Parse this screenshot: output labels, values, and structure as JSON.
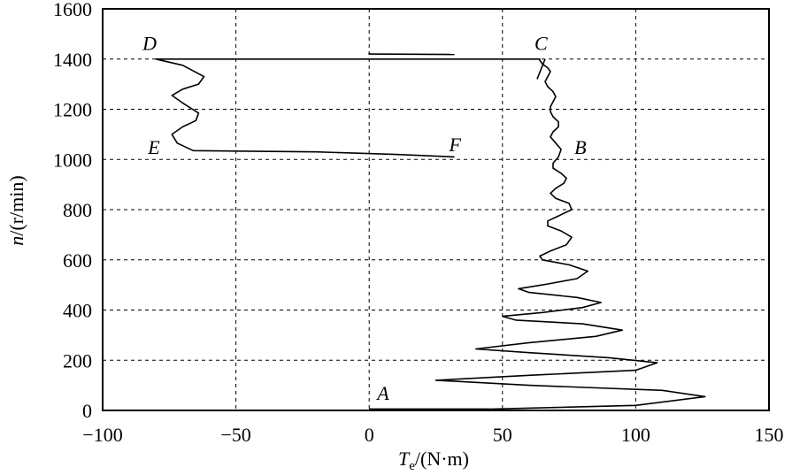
{
  "chart_data": {
    "type": "line",
    "title": "",
    "xlabel": "T_e/(N·m)",
    "xlabel_parts": {
      "main": "T",
      "sub": "e",
      "rest": "/(N·m)"
    },
    "ylabel": "n/(r/min)",
    "ylabel_parts": {
      "italic": "n",
      "rest": "/(r/min)"
    },
    "xlim": [
      -100,
      150
    ],
    "ylim": [
      0,
      1600
    ],
    "xticks": [
      -100,
      -50,
      0,
      50,
      100,
      150
    ],
    "yticks": [
      0,
      200,
      400,
      600,
      800,
      1000,
      1200,
      1400,
      1600
    ],
    "xtick_labels": [
      "−100",
      "−50",
      "0",
      "50",
      "100",
      "150"
    ],
    "ytick_labels": [
      "0",
      "200",
      "400",
      "600",
      "800",
      "1000",
      "1200",
      "1400",
      "1600"
    ],
    "grid": true,
    "point_labels": [
      {
        "text": "A",
        "x": 3,
        "y": 70
      },
      {
        "text": "B",
        "x": 77,
        "y": 1050
      },
      {
        "text": "C",
        "x": 62,
        "y": 1465
      },
      {
        "text": "D",
        "x": -85,
        "y": 1465
      },
      {
        "text": "E",
        "x": -83,
        "y": 1050
      },
      {
        "text": "F",
        "x": 30,
        "y": 1060
      }
    ],
    "series": [
      {
        "points": [
          [
            0,
            5
          ],
          [
            45,
            5
          ],
          [
            100,
            20
          ],
          [
            126,
            55
          ],
          [
            110,
            80
          ],
          [
            60,
            100
          ],
          [
            25,
            120
          ],
          [
            60,
            140
          ],
          [
            100,
            160
          ],
          [
            108,
            190
          ],
          [
            90,
            210
          ],
          [
            60,
            230
          ],
          [
            40,
            245
          ],
          [
            60,
            270
          ],
          [
            85,
            295
          ],
          [
            95,
            320
          ],
          [
            80,
            345
          ],
          [
            55,
            360
          ],
          [
            50,
            375
          ],
          [
            65,
            390
          ],
          [
            80,
            410
          ],
          [
            87,
            430
          ],
          [
            78,
            450
          ],
          [
            60,
            470
          ],
          [
            56,
            485
          ],
          [
            65,
            500
          ],
          [
            78,
            525
          ],
          [
            82,
            555
          ],
          [
            75,
            580
          ],
          [
            65,
            600
          ],
          [
            64,
            615
          ],
          [
            68,
            635
          ],
          [
            74,
            660
          ],
          [
            76,
            690
          ],
          [
            72,
            715
          ],
          [
            67,
            735
          ],
          [
            67,
            755
          ],
          [
            71,
            775
          ],
          [
            76,
            800
          ],
          [
            75,
            825
          ],
          [
            70,
            845
          ],
          [
            68,
            865
          ],
          [
            70,
            885
          ],
          [
            73,
            905
          ],
          [
            74,
            925
          ],
          [
            72,
            945
          ],
          [
            69,
            965
          ],
          [
            69,
            985
          ],
          [
            71,
            1010
          ],
          [
            72,
            1040
          ],
          [
            70,
            1065
          ],
          [
            68,
            1090
          ],
          [
            69,
            1110
          ],
          [
            71,
            1130
          ],
          [
            71,
            1150
          ],
          [
            69,
            1170
          ],
          [
            68,
            1190
          ],
          [
            68,
            1210
          ],
          [
            69,
            1230
          ],
          [
            70,
            1250
          ],
          [
            69,
            1270
          ],
          [
            67,
            1290
          ],
          [
            66,
            1310
          ],
          [
            67,
            1330
          ],
          [
            68,
            1350
          ],
          [
            67,
            1365
          ],
          [
            65,
            1380
          ],
          [
            64,
            1395
          ],
          [
            64,
            1400
          ],
          [
            -80,
            1400
          ],
          [
            -70,
            1375
          ],
          [
            -62,
            1330
          ],
          [
            -64,
            1300
          ],
          [
            -70,
            1280
          ],
          [
            -74,
            1255
          ],
          [
            -70,
            1225
          ],
          [
            -64,
            1185
          ],
          [
            -65,
            1155
          ],
          [
            -70,
            1130
          ],
          [
            -74,
            1100
          ],
          [
            -72,
            1065
          ],
          [
            -66,
            1035
          ],
          [
            -20,
            1030
          ],
          [
            10,
            1020
          ],
          [
            32,
            1010
          ]
        ]
      },
      {
        "points": [
          [
            0,
            1420
          ],
          [
            32,
            1418
          ]
        ]
      },
      {
        "points": [
          [
            0,
            1418
          ],
          [
            0,
            1425
          ]
        ]
      }
    ]
  }
}
